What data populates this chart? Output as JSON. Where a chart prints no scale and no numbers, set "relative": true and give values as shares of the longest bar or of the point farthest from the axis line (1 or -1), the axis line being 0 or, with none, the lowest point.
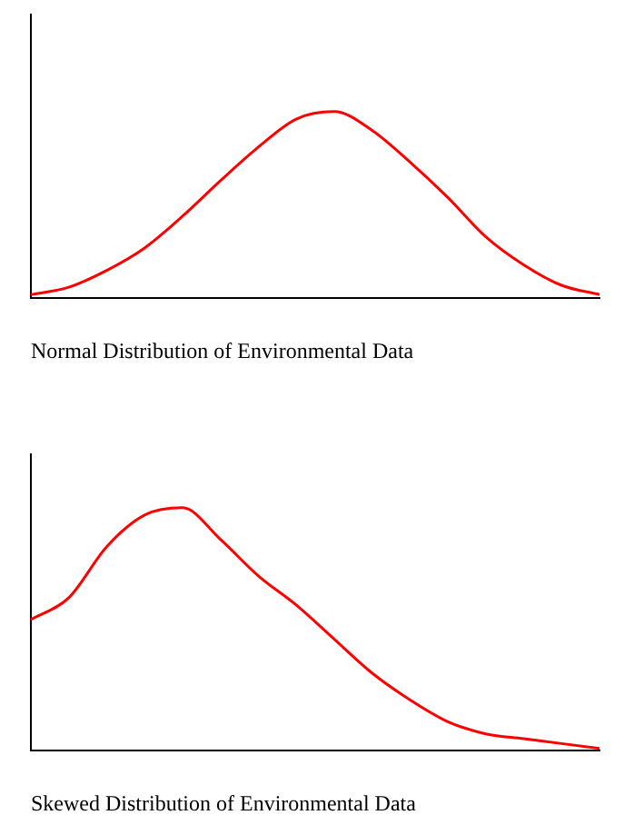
{
  "chart_data": [
    {
      "type": "line",
      "relative": true,
      "xlabel": "Normal Distribution of Environmental Data",
      "categories": [
        null,
        null,
        null,
        null,
        null,
        null,
        null,
        null,
        null,
        null,
        null,
        null,
        null,
        null,
        null,
        null
      ],
      "series": [
        {
          "color": "#ff0000",
          "values": [
            0.02,
            0.06,
            0.15,
            0.27,
            0.44,
            0.63,
            0.81,
            0.96,
            1,
            0.9,
            0.73,
            0.54,
            0.33,
            0.18,
            0.07,
            0.02
          ]
        }
      ],
      "marker": "none",
      "grid": false,
      "legend": false
    },
    {
      "type": "line",
      "relative": true,
      "xlabel": "Skewed Distribution of Environmental Data",
      "categories": [
        null,
        null,
        null,
        null,
        null,
        null,
        null,
        null,
        null,
        null,
        null,
        null,
        null,
        null,
        null,
        null
      ],
      "series": [
        {
          "color": "#ff0000",
          "values": [
            0.54,
            0.63,
            0.84,
            0.97,
            1,
            0.87,
            0.72,
            0.6,
            0.46,
            0.32,
            0.21,
            0.12,
            0.07,
            0.05,
            0.03,
            0.01
          ]
        }
      ],
      "marker": "none",
      "grid": false,
      "legend": false
    }
  ]
}
